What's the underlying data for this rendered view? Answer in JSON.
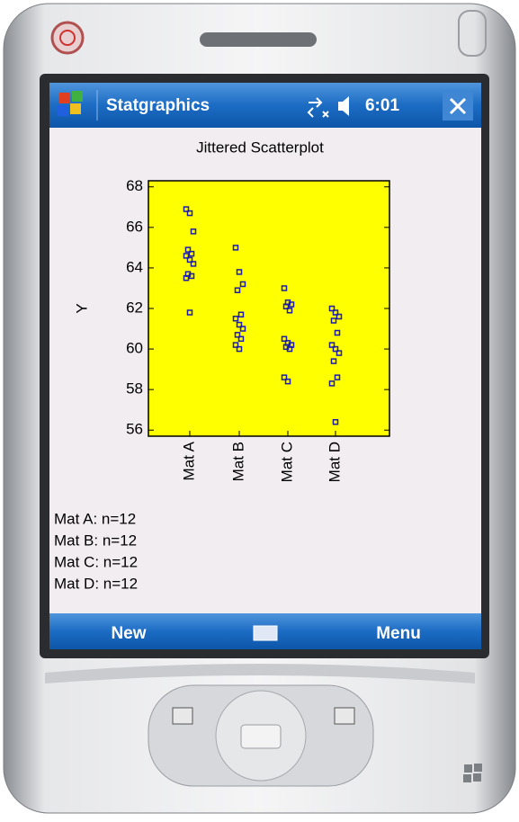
{
  "title_bar": {
    "app": "Statgraphics",
    "time": "6:01"
  },
  "chart_data": {
    "type": "scatter",
    "title": "Jittered Scatterplot",
    "y_label": "Y",
    "categories": [
      "Mat A",
      "Mat B",
      "Mat C",
      "Mat D"
    ],
    "values": [
      [
        66.9,
        66.7,
        65.8,
        64.9,
        64.7,
        64.6,
        64.4,
        64.2,
        63.7,
        63.6,
        63.5,
        61.8
      ],
      [
        65.0,
        63.8,
        63.2,
        62.9,
        61.7,
        61.5,
        61.2,
        61.0,
        60.7,
        60.5,
        60.2,
        60.0
      ],
      [
        63.0,
        62.3,
        62.2,
        62.1,
        61.9,
        60.5,
        60.3,
        60.2,
        60.1,
        60.0,
        58.6,
        58.4
      ],
      [
        62.0,
        61.8,
        61.6,
        61.4,
        60.8,
        60.2,
        60.0,
        59.8,
        59.4,
        58.6,
        58.3,
        56.4
      ]
    ],
    "color": "#1c1ca8",
    "plot_background": "#ffff00",
    "ylim": [
      55.7,
      68.3
    ],
    "yticks": [
      56,
      58,
      60,
      62,
      64,
      66,
      68
    ]
  },
  "summary": [
    "Mat A: n=12",
    "Mat B: n=12",
    "Mat C: n=12",
    "Mat D: n=12"
  ],
  "menu_bar": {
    "left": "New",
    "right": "Menu"
  }
}
